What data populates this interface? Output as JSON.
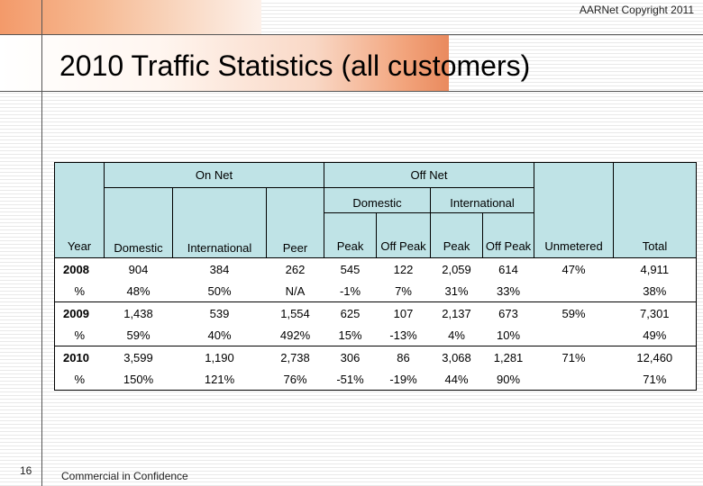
{
  "header": {
    "copyright": "AARNet Copyright 2011",
    "title": "2010 Traffic Statistics (all customers)"
  },
  "footer": {
    "page_number": "16",
    "confidentiality": "Commercial in Confidence"
  },
  "table": {
    "group_headers": {
      "on_net": "On Net",
      "off_net": "Off Net",
      "domestic": "Domestic",
      "international": "International"
    },
    "columns": {
      "year": "Year",
      "domestic": "Domestic",
      "international": "International",
      "peer": "Peer",
      "dom_peak": "Peak",
      "dom_off_peak": "Off Peak",
      "int_peak": "Peak",
      "int_off_peak": "Off Peak",
      "unmetered": "Unmetered",
      "total": "Total"
    },
    "rows": [
      {
        "year": "2008",
        "values": [
          "904",
          "384",
          "262",
          "545",
          "122",
          "2,059",
          "614"
        ],
        "unmetered": "47%",
        "total": "4,911",
        "pct_label": "%",
        "pct": [
          "48%",
          "50%",
          "N/A",
          "-1%",
          "7%",
          "31%",
          "33%"
        ],
        "pct_total": "38%"
      },
      {
        "year": "2009",
        "values": [
          "1,438",
          "539",
          "1,554",
          "625",
          "107",
          "2,137",
          "673"
        ],
        "unmetered": "59%",
        "total": "7,301",
        "pct_label": "%",
        "pct": [
          "59%",
          "40%",
          "492%",
          "15%",
          "-13%",
          "4%",
          "10%"
        ],
        "pct_total": "49%"
      },
      {
        "year": "2010",
        "values": [
          "3,599",
          "1,190",
          "2,738",
          "306",
          "86",
          "3,068",
          "1,281"
        ],
        "unmetered": "71%",
        "total": "12,460",
        "pct_label": "%",
        "pct": [
          "150%",
          "121%",
          "76%",
          "-51%",
          "-19%",
          "44%",
          "90%"
        ],
        "pct_total": "71%"
      }
    ]
  }
}
